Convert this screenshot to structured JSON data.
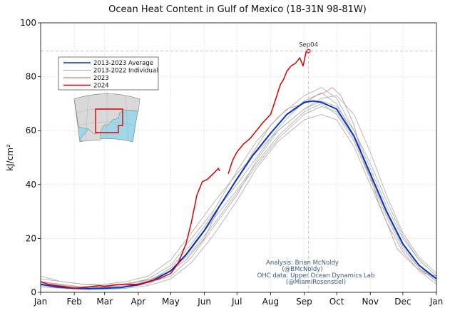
{
  "chart_data": {
    "type": "line",
    "title": "Ocean Heat Content in Gulf of Mexico (18-31N 98-81W)",
    "xlabel": "",
    "ylabel": "kJ/cm²",
    "ylim": [
      0,
      100
    ],
    "yticks": [
      0,
      20,
      40,
      60,
      80,
      100
    ],
    "xlim": [
      1,
      366
    ],
    "xticks": [
      {
        "label": "Jan",
        "day": 1
      },
      {
        "label": "Feb",
        "day": 32
      },
      {
        "label": "Mar",
        "day": 60
      },
      {
        "label": "Apr",
        "day": 91
      },
      {
        "label": "May",
        "day": 121
      },
      {
        "label": "Jun",
        "day": 152
      },
      {
        "label": "Jul",
        "day": 182
      },
      {
        "label": "Aug",
        "day": 213
      },
      {
        "label": "Sep",
        "day": 244
      },
      {
        "label": "Oct",
        "day": 274
      },
      {
        "label": "Nov",
        "day": 305
      },
      {
        "label": "Dec",
        "day": 335
      },
      {
        "label": "Jan",
        "day": 366
      }
    ],
    "grid": true,
    "legend_position": "top-left",
    "legend": [
      {
        "label": "2013-2023 Average",
        "color": "#0033cc"
      },
      {
        "label": "2013-2022 Individual",
        "color": "#aaaaaa"
      },
      {
        "label": "2023",
        "color": "#cc9999"
      },
      {
        "label": "2024",
        "color": "#dd0000"
      }
    ],
    "annotation": {
      "label": "Sep04",
      "day": 248,
      "value": 89.5,
      "color": "#dd0000"
    },
    "reference_hline": 89.5,
    "reference_vline_day": 248,
    "series": [
      {
        "name": "2013-2023 Average",
        "color": "#0033cc",
        "points": [
          [
            1,
            3
          ],
          [
            15,
            2
          ],
          [
            32,
            1.5
          ],
          [
            46,
            1.4
          ],
          [
            60,
            1.5
          ],
          [
            75,
            1.8
          ],
          [
            91,
            2.8
          ],
          [
            105,
            4.5
          ],
          [
            121,
            8
          ],
          [
            135,
            14
          ],
          [
            152,
            23
          ],
          [
            166,
            32
          ],
          [
            182,
            42
          ],
          [
            197,
            51
          ],
          [
            213,
            59
          ],
          [
            228,
            66
          ],
          [
            244,
            70.5
          ],
          [
            252,
            71
          ],
          [
            260,
            70.5
          ],
          [
            274,
            68
          ],
          [
            290,
            58
          ],
          [
            305,
            44
          ],
          [
            320,
            30
          ],
          [
            335,
            18
          ],
          [
            350,
            10
          ],
          [
            366,
            5
          ]
        ]
      },
      {
        "name": "2024",
        "color": "#dd0000",
        "points": [
          [
            1,
            4
          ],
          [
            8,
            3
          ],
          [
            15,
            2.5
          ],
          [
            25,
            2
          ],
          [
            32,
            1.5
          ],
          [
            40,
            1.8
          ],
          [
            46,
            2
          ],
          [
            55,
            2.5
          ],
          [
            60,
            2.2
          ],
          [
            70,
            2.8
          ],
          [
            80,
            3
          ],
          [
            91,
            3
          ],
          [
            100,
            4
          ],
          [
            110,
            5
          ],
          [
            121,
            7
          ],
          [
            128,
            11
          ],
          [
            135,
            18
          ],
          [
            140,
            26
          ],
          [
            145,
            36
          ],
          [
            150,
            41
          ],
          [
            155,
            42
          ],
          [
            160,
            44
          ],
          [
            165,
            46
          ],
          [
            166,
            45
          ]
        ]
      },
      {
        "name": "2024",
        "color": "#dd0000",
        "points": [
          [
            174,
            44
          ],
          [
            178,
            49
          ],
          [
            182,
            52
          ],
          [
            188,
            55
          ],
          [
            194,
            57
          ],
          [
            200,
            60
          ],
          [
            206,
            63
          ],
          [
            213,
            66
          ],
          [
            218,
            72
          ],
          [
            222,
            77
          ],
          [
            225,
            79
          ],
          [
            228,
            82
          ],
          [
            232,
            84
          ],
          [
            236,
            85
          ],
          [
            240,
            87
          ],
          [
            243,
            84
          ],
          [
            246,
            89.5
          ]
        ]
      },
      {
        "name": "2023",
        "color": "#cc9999",
        "points": [
          [
            1,
            4
          ],
          [
            15,
            3
          ],
          [
            32,
            2
          ],
          [
            46,
            2.2
          ],
          [
            60,
            2.5
          ],
          [
            75,
            3
          ],
          [
            91,
            4
          ],
          [
            105,
            5
          ],
          [
            121,
            8
          ],
          [
            135,
            12
          ],
          [
            152,
            20
          ],
          [
            166,
            32
          ],
          [
            182,
            42
          ],
          [
            197,
            52
          ],
          [
            213,
            62
          ],
          [
            228,
            68
          ],
          [
            244,
            70
          ],
          [
            255,
            73
          ],
          [
            262,
            74
          ],
          [
            270,
            76
          ],
          [
            278,
            73
          ],
          [
            290,
            62
          ],
          [
            300,
            47
          ],
          [
            305,
            43
          ],
          [
            312,
            34
          ],
          [
            320,
            26
          ],
          [
            330,
            16
          ],
          [
            335,
            14
          ],
          [
            345,
            10
          ],
          [
            355,
            7
          ],
          [
            366,
            6
          ]
        ]
      },
      {
        "name": "",
        "color": "#aaaaaa",
        "points": [
          [
            1,
            4
          ],
          [
            20,
            3
          ],
          [
            40,
            2
          ],
          [
            60,
            2
          ],
          [
            80,
            3
          ],
          [
            100,
            5
          ],
          [
            121,
            10
          ],
          [
            140,
            20
          ],
          [
            160,
            30
          ],
          [
            182,
            45
          ],
          [
            200,
            56
          ],
          [
            220,
            65
          ],
          [
            244,
            73
          ],
          [
            260,
            76
          ],
          [
            274,
            72
          ],
          [
            290,
            60
          ],
          [
            305,
            46
          ],
          [
            320,
            32
          ],
          [
            335,
            20
          ],
          [
            350,
            12
          ],
          [
            366,
            6
          ]
        ]
      },
      {
        "name": "",
        "color": "#aaaaaa",
        "points": [
          [
            1,
            2
          ],
          [
            20,
            1.5
          ],
          [
            40,
            1
          ],
          [
            60,
            1
          ],
          [
            80,
            1.5
          ],
          [
            100,
            2.5
          ],
          [
            121,
            5
          ],
          [
            140,
            11
          ],
          [
            160,
            21
          ],
          [
            182,
            34
          ],
          [
            200,
            46
          ],
          [
            220,
            56
          ],
          [
            244,
            64
          ],
          [
            260,
            66
          ],
          [
            274,
            64
          ],
          [
            290,
            54
          ],
          [
            305,
            40
          ],
          [
            320,
            26
          ],
          [
            335,
            15
          ],
          [
            350,
            8
          ],
          [
            366,
            3
          ]
        ]
      },
      {
        "name": "",
        "color": "#aaaaaa",
        "points": [
          [
            1,
            5
          ],
          [
            20,
            4
          ],
          [
            40,
            3
          ],
          [
            60,
            3
          ],
          [
            80,
            4
          ],
          [
            100,
            6
          ],
          [
            121,
            12
          ],
          [
            140,
            22
          ],
          [
            160,
            33
          ],
          [
            182,
            44
          ],
          [
            200,
            52
          ],
          [
            220,
            60
          ],
          [
            244,
            68
          ],
          [
            260,
            72
          ],
          [
            274,
            73
          ],
          [
            290,
            66
          ],
          [
            305,
            52
          ],
          [
            320,
            36
          ],
          [
            335,
            22
          ],
          [
            350,
            13
          ],
          [
            366,
            7
          ]
        ]
      },
      {
        "name": "",
        "color": "#aaaaaa",
        "points": [
          [
            1,
            3
          ],
          [
            20,
            2
          ],
          [
            40,
            1.5
          ],
          [
            60,
            1.5
          ],
          [
            80,
            2
          ],
          [
            100,
            3
          ],
          [
            121,
            7
          ],
          [
            140,
            16
          ],
          [
            160,
            27
          ],
          [
            182,
            38
          ],
          [
            200,
            48
          ],
          [
            220,
            58
          ],
          [
            244,
            67
          ],
          [
            260,
            70
          ],
          [
            274,
            66
          ],
          [
            290,
            56
          ],
          [
            305,
            42
          ],
          [
            320,
            28
          ],
          [
            335,
            16
          ],
          [
            350,
            9
          ],
          [
            366,
            4
          ]
        ]
      },
      {
        "name": "",
        "color": "#aaaaaa",
        "points": [
          [
            1,
            2.5
          ],
          [
            20,
            2
          ],
          [
            40,
            1.5
          ],
          [
            60,
            1.8
          ],
          [
            80,
            2.5
          ],
          [
            100,
            4
          ],
          [
            121,
            9
          ],
          [
            140,
            18
          ],
          [
            160,
            29
          ],
          [
            182,
            40
          ],
          [
            200,
            50
          ],
          [
            220,
            61
          ],
          [
            244,
            71
          ],
          [
            260,
            74
          ],
          [
            274,
            70
          ],
          [
            290,
            58
          ],
          [
            305,
            44
          ],
          [
            320,
            30
          ],
          [
            335,
            18
          ],
          [
            350,
            10
          ],
          [
            366,
            4
          ]
        ]
      },
      {
        "name": "",
        "color": "#aaaaaa",
        "points": [
          [
            1,
            6
          ],
          [
            20,
            4
          ],
          [
            40,
            3
          ],
          [
            60,
            2.5
          ],
          [
            80,
            3
          ],
          [
            100,
            4.5
          ],
          [
            121,
            8
          ],
          [
            140,
            15
          ],
          [
            160,
            25
          ],
          [
            182,
            37
          ],
          [
            200,
            47
          ],
          [
            220,
            57
          ],
          [
            244,
            66
          ],
          [
            260,
            69
          ],
          [
            274,
            67
          ],
          [
            290,
            57
          ],
          [
            305,
            43
          ],
          [
            320,
            29
          ],
          [
            335,
            17
          ],
          [
            350,
            9
          ],
          [
            366,
            5
          ]
        ]
      },
      {
        "name": "",
        "color": "#aaaaaa",
        "points": [
          [
            1,
            3.5
          ],
          [
            20,
            2.5
          ],
          [
            40,
            2
          ],
          [
            60,
            2
          ],
          [
            80,
            2.5
          ],
          [
            100,
            3.5
          ],
          [
            121,
            6
          ],
          [
            140,
            13
          ],
          [
            160,
            24
          ],
          [
            182,
            36
          ],
          [
            200,
            49
          ],
          [
            220,
            60
          ],
          [
            244,
            68
          ],
          [
            260,
            71
          ],
          [
            274,
            69
          ],
          [
            290,
            60
          ],
          [
            305,
            48
          ],
          [
            320,
            34
          ],
          [
            335,
            21
          ],
          [
            350,
            12
          ],
          [
            366,
            6
          ]
        ]
      }
    ]
  },
  "credits": {
    "line1": "Analysis: Brian McNoldy",
    "line2": "(@BMcNoldy)",
    "line3": "OHC data: Upper Ocean Dynamics Lab",
    "line4": "(@MiamiRosenstiel)"
  },
  "inset_map": {
    "icon": "gulf-of-mexico-map"
  }
}
